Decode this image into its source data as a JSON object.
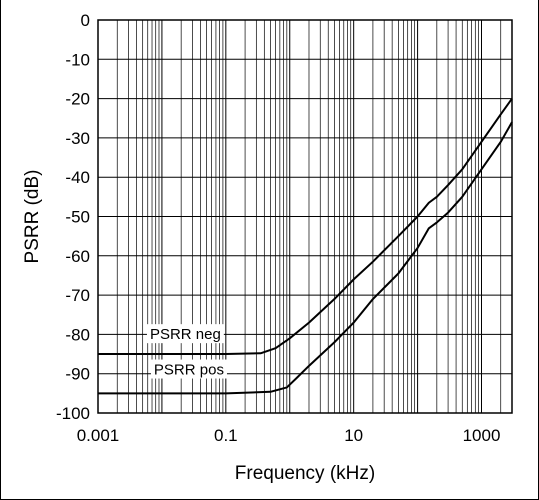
{
  "chart_data": {
    "type": "line",
    "title": "",
    "xlabel": "Frequency (kHz)",
    "ylabel": "PSRR (dB)",
    "x_scale": "log",
    "xlim": [
      0.001,
      3000
    ],
    "ylim": [
      -100,
      0
    ],
    "x_ticks": [
      0.001,
      0.1,
      10,
      1000
    ],
    "x_tick_labels": [
      "0.001",
      "0.1",
      "10",
      "1000"
    ],
    "y_ticks": [
      0,
      -10,
      -20,
      -30,
      -40,
      -50,
      -60,
      -70,
      -80,
      -90,
      -100
    ],
    "y_tick_labels": [
      "0",
      "-10",
      "-20",
      "-30",
      "-40",
      "-50",
      "-60",
      "-70",
      "-80",
      "-90",
      "-100"
    ],
    "grid": true,
    "legend": "none",
    "series": [
      {
        "name": "PSRR neg",
        "color": "#000000",
        "x": [
          0.001,
          0.01,
          0.1,
          0.35,
          0.6,
          1,
          2,
          5,
          10,
          20,
          50,
          100,
          150,
          200,
          300,
          500,
          1000,
          2000,
          3000
        ],
        "y": [
          -85,
          -85,
          -85,
          -84.8,
          -83.5,
          -81,
          -77,
          -71,
          -66,
          -61.5,
          -55,
          -50,
          -46.5,
          -45,
          -42,
          -38,
          -31,
          -24,
          -20
        ]
      },
      {
        "name": "PSRR pos",
        "color": "#000000",
        "x": [
          0.001,
          0.01,
          0.1,
          0.5,
          0.9,
          1.3,
          2,
          5,
          10,
          20,
          50,
          100,
          150,
          200,
          300,
          500,
          1000,
          2000,
          3000
        ],
        "y": [
          -95,
          -95,
          -95,
          -94.6,
          -93.5,
          -91,
          -88,
          -82,
          -77,
          -71,
          -64.5,
          -58,
          -53,
          -51.5,
          -49,
          -45,
          -38,
          -31,
          -26
        ]
      }
    ]
  }
}
